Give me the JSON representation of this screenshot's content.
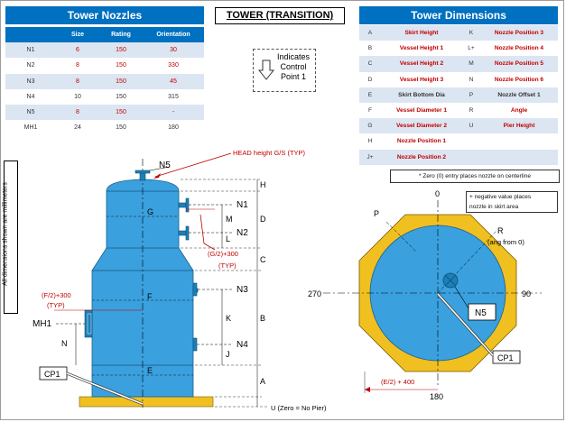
{
  "title": "TOWER (TRANSITION)",
  "nozzles": {
    "heading": "Tower Nozzles",
    "columns": [
      "",
      "Size",
      "Rating",
      "Orientation"
    ],
    "rows": [
      [
        "N1",
        "6",
        "150",
        "30"
      ],
      [
        "N2",
        "8",
        "150",
        "330"
      ],
      [
        "N3",
        "8",
        "150",
        "45"
      ],
      [
        "N4",
        "10",
        "150",
        "315"
      ],
      [
        "N5",
        "8",
        "150",
        "-"
      ],
      [
        "MH1",
        "24",
        "150",
        "180"
      ]
    ]
  },
  "dimensions": {
    "heading": "Tower Dimensions",
    "rows": [
      [
        "A",
        "Skirt Height",
        "K",
        "Nozzle Position 3"
      ],
      [
        "B",
        "Vessel Height 1",
        "L+",
        "Nozzle Position 4"
      ],
      [
        "C",
        "Vessel Height 2",
        "M",
        "Nozzle Position 5"
      ],
      [
        "D",
        "Vessel Height 3",
        "N",
        "Nozzle Position 6"
      ],
      [
        "E",
        "Skirt Bottom Dia",
        "P",
        "Nozzle Offset 1"
      ],
      [
        "F",
        "Vessel Diameter 1",
        "R",
        "Angle"
      ],
      [
        "G",
        "Vessel Diameter 2",
        "U",
        "Pier Height"
      ],
      [
        "H",
        "Nozzle Position 1",
        "",
        ""
      ],
      [
        "J+",
        "Nozzle Position 2",
        "",
        ""
      ]
    ]
  },
  "control_point": {
    "text_1": "Indicates",
    "text_2": "Control",
    "text_3": "Point 1"
  },
  "notes": {
    "zero_entry": "* Zero (0) entry places nozzle on centerline",
    "negative_1": "+ negative value places",
    "negative_2": "nozzle in skirt area",
    "all_dims": "All dimensions shown are millimeters"
  },
  "elevation": {
    "head_height": "HEAD height G/S (TYP)",
    "n5": "N5",
    "n1": "N1",
    "n2": "N2",
    "n3": "N3",
    "n4": "N4",
    "mh1": "MH1",
    "cp1": "CP1",
    "h": "H",
    "d": "D",
    "c": "C",
    "b": "B",
    "a": "A",
    "m": "M",
    "l": "L",
    "k": "K",
    "j": "J",
    "n": "N",
    "g": "G",
    "f": "F",
    "e": "E",
    "g2": "(G/2)+300",
    "typ1": "(TYP)",
    "f2": "(F/2)+300",
    "typ2": "(TYP)",
    "u": "U  (Zero = No Pier)"
  },
  "plan": {
    "deg0": "0",
    "deg90": "90",
    "deg180": "180",
    "deg270": "270",
    "p": "P",
    "r": "R",
    "ang": "(ang from 0)",
    "n5": "N5",
    "cp1": "CP1",
    "e2": "(E/2) + 400"
  },
  "colors": {
    "header_blue": "#0070c0",
    "vessel_blue": "#3aa0de",
    "skirt_gold": "#f0c020",
    "accent_red": "#c00000"
  }
}
